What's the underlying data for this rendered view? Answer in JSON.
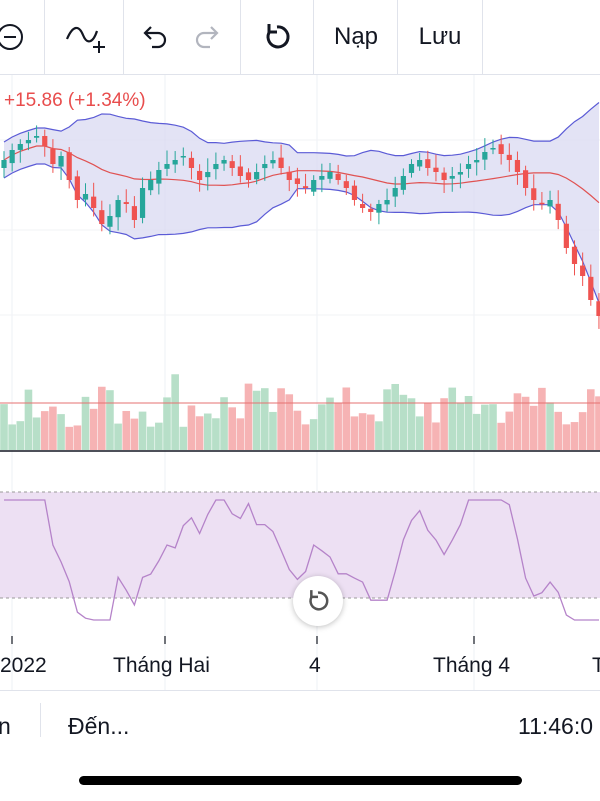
{
  "toolbar": {
    "load_label": "Nạp",
    "save_label": "Lưu",
    "icons": [
      "add-circle-icon",
      "indicator-add-icon",
      "undo-icon",
      "redo-icon",
      "reset-icon"
    ]
  },
  "price_change": "+15.86 (+1.34%)",
  "x_axis": [
    "2022",
    "Tháng Hai",
    "4",
    "Tháng 4",
    "T"
  ],
  "bottom": {
    "left_partial": "n",
    "goto_label": "Đến...",
    "time": "11:46:0"
  },
  "colors": {
    "up": "#26a69a",
    "down": "#ef5350",
    "up_volume": "#b7dfc8",
    "down_volume": "#f6b3b4",
    "bollinger_band": "#d9d9f2",
    "bollinger_line": "#5b5bd6",
    "basis_line": "#e05252",
    "rsi_band": "#ede0f3",
    "rsi_line": "#b583c9"
  },
  "chart_data": {
    "type": "candlestick",
    "candles_close": [
      1170,
      1175,
      1178,
      1180,
      1182,
      1177,
      1168,
      1172,
      1160,
      1150,
      1153,
      1146,
      1138,
      1142,
      1150,
      1148,
      1140,
      1156,
      1160,
      1165,
      1168,
      1170,
      1172,
      1166,
      1160,
      1164,
      1168,
      1170,
      1166,
      1162,
      1160,
      1164,
      1168,
      1170,
      1166,
      1160,
      1158,
      1156,
      1160,
      1162,
      1164,
      1160,
      1156,
      1150,
      1146,
      1144,
      1148,
      1150,
      1156,
      1162,
      1168,
      1170,
      1166,
      1164,
      1160,
      1162,
      1164,
      1168,
      1170,
      1174,
      1176,
      1173,
      1170,
      1164,
      1156,
      1150,
      1148,
      1150,
      1140,
      1126,
      1118,
      1112,
      1100,
      1092
    ]
  }
}
